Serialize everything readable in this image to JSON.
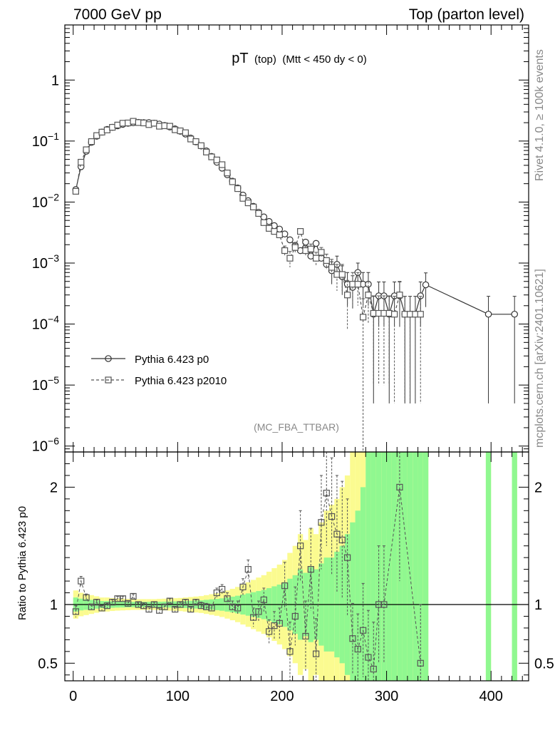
{
  "header": {
    "left": "7000 GeV pp",
    "right": "Top (parton level)"
  },
  "side_labels": {
    "rivet": "Rivet 4.1.0, ≥ 100k events",
    "mcplots": "mcplots.cern.ch [arXiv:2401.10621]"
  },
  "analysis_tag": "(MC_FBA_TTBAR)",
  "ratio_ylabel": "Ratio to Pythia 6.423 p0",
  "colors": {
    "band_inner": "#90f890",
    "band_outer": "#fbfb90",
    "p0": "#333333",
    "p2010": "#555555"
  },
  "chart_data": {
    "type": "line",
    "title": {
      "main": "pT",
      "sub1": "(top)",
      "sub2": "(Mtt < 450 dy < 0)"
    },
    "xlabel": "",
    "xlim": [
      -8,
      436
    ],
    "xticks": [
      0,
      100,
      200,
      300,
      400
    ],
    "top_panel": {
      "yscale": "log",
      "ylim": [
        8e-07,
        8
      ],
      "yticks": [
        1e-06,
        1e-05,
        0.0001,
        0.001,
        0.01,
        0.1,
        1
      ],
      "ytick_labels": [
        {
          "base": "10",
          "exp": "−6"
        },
        {
          "base": "10",
          "exp": "−5"
        },
        {
          "base": "10",
          "exp": "−4"
        },
        {
          "base": "10",
          "exp": "−3"
        },
        {
          "base": "10",
          "exp": "−2"
        },
        {
          "base": "10",
          "exp": "−1"
        },
        {
          "base": "1",
          "exp": ""
        }
      ]
    },
    "ratio_panel": {
      "ylim": [
        0.35,
        2.3
      ],
      "yticks": [
        0.5,
        1,
        2
      ],
      "ytick_labels": [
        "0.5",
        "1",
        "2"
      ]
    },
    "legend": {
      "position": "lower-left",
      "entries": [
        "Pythia 6.423 p0",
        "Pythia 6.423 p2010"
      ]
    },
    "series": [
      {
        "name": "Pythia 6.423 p0",
        "marker": "circle",
        "linestyle": "solid",
        "x": [
          2.5,
          7.5,
          12.5,
          17.5,
          22.5,
          27.5,
          32.5,
          37.5,
          42.5,
          47.5,
          52.5,
          57.5,
          62.5,
          67.5,
          72.5,
          77.5,
          82.5,
          87.5,
          92.5,
          97.5,
          102.5,
          107.5,
          112.5,
          117.5,
          122.5,
          127.5,
          132.5,
          137.5,
          142.5,
          147.5,
          152.5,
          157.5,
          162.5,
          167.5,
          172.5,
          177.5,
          182.5,
          187.5,
          192.5,
          197.5,
          202.5,
          207.5,
          212.5,
          217.5,
          222.5,
          227.5,
          232.5,
          237.5,
          242.5,
          247.5,
          252.5,
          257.5,
          262.5,
          267.5,
          272.5,
          277.5,
          282.5,
          287.5,
          292.5,
          297.5,
          302.5,
          307.5,
          312.5,
          317.5,
          322.5,
          327.5,
          332.5,
          337.5,
          397.5,
          422.5
        ],
        "y": [
          0.016,
          0.038,
          0.068,
          0.095,
          0.12,
          0.14,
          0.155,
          0.168,
          0.178,
          0.188,
          0.196,
          0.2,
          0.202,
          0.2,
          0.2,
          0.196,
          0.19,
          0.18,
          0.17,
          0.158,
          0.145,
          0.13,
          0.112,
          0.097,
          0.083,
          0.069,
          0.056,
          0.045,
          0.036,
          0.028,
          0.022,
          0.017,
          0.013,
          0.0105,
          0.0085,
          0.0068,
          0.0057,
          0.0048,
          0.0041,
          0.0036,
          0.003,
          0.0024,
          0.00195,
          0.0016,
          0.0022,
          0.0013,
          0.0021,
          0.0012,
          0.00095,
          0.00075,
          0.00095,
          0.0006,
          0.00045,
          0.0004,
          0.0007,
          0.00045,
          0.00045,
          0.000145,
          0.00029,
          0.00029,
          0.000145,
          0.00029,
          0.00029,
          0.000145,
          0.000145,
          0.000145,
          0.00029,
          0.00044,
          0.000145,
          0.000145
        ],
        "yerr": [
          0.0006,
          0.001,
          0.0015,
          0.002,
          0.002,
          0.002,
          0.002,
          0.002,
          0.002,
          0.002,
          0.002,
          0.002,
          0.002,
          0.002,
          0.002,
          0.002,
          0.002,
          0.002,
          0.002,
          0.002,
          0.002,
          0.0015,
          0.0015,
          0.0012,
          0.001,
          0.001,
          0.0008,
          0.0007,
          0.0006,
          0.0005,
          0.0004,
          0.0003,
          0.00025,
          0.00022,
          0.0002,
          0.00017,
          0.00015,
          0.00014,
          0.00013,
          0.00012,
          0.00011,
          0.0001,
          9e-05,
          8e-05,
          0.0001,
          8e-05,
          0.0001,
          8e-05,
          7e-05,
          0.0003,
          0.00035,
          0.0003,
          0.00025,
          0.00022,
          0.0003,
          0.00025,
          0.00025,
          0.00014,
          0.0002,
          0.0002,
          0.00014,
          0.0002,
          0.0002,
          0.00014,
          0.00014,
          0.00014,
          0.0002,
          0.00025,
          0.00014,
          0.00014
        ]
      },
      {
        "name": "Pythia 6.423 p2010",
        "marker": "square",
        "linestyle": "dashed",
        "x": [
          2.5,
          7.5,
          12.5,
          17.5,
          22.5,
          27.5,
          32.5,
          37.5,
          42.5,
          47.5,
          52.5,
          57.5,
          62.5,
          67.5,
          72.5,
          77.5,
          82.5,
          87.5,
          92.5,
          97.5,
          102.5,
          107.5,
          112.5,
          117.5,
          122.5,
          127.5,
          132.5,
          137.5,
          142.5,
          147.5,
          152.5,
          157.5,
          162.5,
          167.5,
          172.5,
          177.5,
          182.5,
          187.5,
          192.5,
          197.5,
          202.5,
          207.5,
          212.5,
          217.5,
          222.5,
          227.5,
          232.5,
          237.5,
          242.5,
          247.5,
          252.5,
          257.5,
          262.5,
          267.5,
          272.5,
          277.5,
          282.5,
          287.5,
          292.5,
          297.5,
          302.5,
          307.5,
          312.5,
          317.5,
          322.5,
          327.5,
          332.5
        ],
        "y": [
          0.015,
          0.045,
          0.072,
          0.098,
          0.123,
          0.14,
          0.152,
          0.168,
          0.183,
          0.196,
          0.198,
          0.211,
          0.201,
          0.198,
          0.186,
          0.196,
          0.175,
          0.178,
          0.175,
          0.153,
          0.147,
          0.137,
          0.108,
          0.098,
          0.084,
          0.066,
          0.055,
          0.049,
          0.041,
          0.03,
          0.0215,
          0.0166,
          0.0115,
          0.0097,
          0.0083,
          0.0065,
          0.0046,
          0.0037,
          0.0033,
          0.0029,
          0.0016,
          0.0012,
          0.0018,
          0.0033,
          0.0016,
          0.0017,
          0.0012,
          0.0015,
          0.0011,
          0.00085,
          0.00065,
          0.00065,
          0.0003,
          0.00045,
          0.00045,
          0.00013,
          0.0003,
          0.00015,
          0.00015,
          0.00015,
          0.00015,
          0.000145,
          0.0003,
          0.000145,
          0.000145,
          0.000145,
          0.000145
        ],
        "yerr": [
          0.0006,
          0.001,
          0.0015,
          0.002,
          0.002,
          0.002,
          0.002,
          0.002,
          0.002,
          0.002,
          0.002,
          0.002,
          0.002,
          0.002,
          0.002,
          0.002,
          0.002,
          0.002,
          0.002,
          0.002,
          0.002,
          0.0015,
          0.0015,
          0.0012,
          0.001,
          0.001,
          0.0008,
          0.0007,
          0.0006,
          0.0005,
          0.0004,
          0.0003,
          0.00025,
          0.00022,
          0.0002,
          0.00017,
          0.00015,
          0.00014,
          0.00013,
          0.00012,
          0.0003,
          0.00035,
          0.0003,
          0.0003,
          0.0003,
          0.00035,
          0.0003,
          0.0003,
          0.0003,
          0.0003,
          0.0003,
          0.0003,
          0.00022,
          0.00025,
          0.00025,
          0.00013,
          0.0002,
          0.00014,
          0.00014,
          0.00014,
          0.00014,
          0.00014,
          0.0002,
          0.00014,
          0.00014,
          0.00014,
          0.00014
        ]
      }
    ],
    "ratio": {
      "reference": "Pythia 6.423 p0",
      "x": [
        2.5,
        7.5,
        12.5,
        17.5,
        22.5,
        27.5,
        32.5,
        37.5,
        42.5,
        47.5,
        52.5,
        57.5,
        62.5,
        67.5,
        72.5,
        77.5,
        82.5,
        87.5,
        92.5,
        97.5,
        102.5,
        107.5,
        112.5,
        117.5,
        122.5,
        127.5,
        132.5,
        137.5,
        142.5,
        147.5,
        152.5,
        157.5,
        162.5,
        167.5,
        172.5,
        177.5,
        182.5,
        187.5,
        192.5,
        197.5,
        202.5,
        207.5,
        212.5,
        217.5,
        222.5,
        227.5,
        232.5,
        237.5,
        242.5,
        247.5,
        252.5,
        257.5,
        262.5,
        267.5,
        272.5,
        277.5,
        282.5,
        287.5,
        292.5,
        297.5,
        312.5,
        332.5
      ],
      "y": [
        0.94,
        1.2,
        1.06,
        0.98,
        1.02,
        0.97,
        0.99,
        1.02,
        1.05,
        1.05,
        1.01,
        1.07,
        1.0,
        0.99,
        0.96,
        1.0,
        0.95,
        0.98,
        1.03,
        0.96,
        1.0,
        1.02,
        0.96,
        1.02,
        0.99,
        0.98,
        0.97,
        1.1,
        1.13,
        1.05,
        0.98,
        0.97,
        1.15,
        1.3,
        0.89,
        0.94,
        1.04,
        0.77,
        0.82,
        0.84,
        1.16,
        0.6,
        0.9,
        1.5,
        0.73,
        1.3,
        0.58,
        1.7,
        1.95,
        1.75,
        1.6,
        1.55,
        1.4,
        0.71,
        0.62,
        0.78,
        0.55,
        0.45,
        1.0,
        1.0,
        2.0,
        0.5
      ],
      "yerr": [
        0.05,
        0.04,
        0.03,
        0.02,
        0.02,
        0.02,
        0.02,
        0.02,
        0.02,
        0.02,
        0.02,
        0.02,
        0.02,
        0.02,
        0.02,
        0.02,
        0.02,
        0.02,
        0.02,
        0.02,
        0.02,
        0.02,
        0.02,
        0.02,
        0.03,
        0.03,
        0.03,
        0.04,
        0.04,
        0.05,
        0.05,
        0.06,
        0.07,
        0.08,
        0.08,
        0.09,
        0.1,
        0.1,
        0.12,
        0.13,
        0.2,
        0.25,
        0.25,
        0.3,
        0.3,
        0.35,
        0.3,
        0.4,
        0.45,
        0.5,
        0.5,
        0.5,
        0.5,
        0.3,
        0.3,
        0.4,
        0.4,
        0.4,
        0.5,
        0.5,
        0.8,
        0.5
      ]
    },
    "ratio_band": {
      "x_edges": [
        0,
        5,
        10,
        15,
        20,
        25,
        30,
        35,
        40,
        45,
        50,
        55,
        60,
        65,
        70,
        75,
        80,
        85,
        90,
        95,
        100,
        105,
        110,
        115,
        120,
        125,
        130,
        135,
        140,
        145,
        150,
        155,
        160,
        165,
        170,
        175,
        180,
        185,
        190,
        195,
        200,
        205,
        210,
        215,
        220,
        225,
        230,
        235,
        240,
        245,
        250,
        255,
        260,
        265,
        270,
        275,
        280,
        285,
        290,
        295,
        300,
        305,
        310,
        315,
        320,
        325,
        330,
        335,
        340,
        395,
        400,
        420,
        425
      ],
      "inner": [
        0.06,
        0.05,
        0.045,
        0.04,
        0.035,
        0.03,
        0.03,
        0.028,
        0.026,
        0.025,
        0.024,
        0.023,
        0.023,
        0.023,
        0.023,
        0.023,
        0.024,
        0.025,
        0.026,
        0.027,
        0.028,
        0.03,
        0.032,
        0.034,
        0.036,
        0.04,
        0.044,
        0.048,
        0.053,
        0.06,
        0.067,
        0.075,
        0.085,
        0.095,
        0.105,
        0.115,
        0.125,
        0.14,
        0.155,
        0.17,
        0.19,
        0.22,
        0.25,
        0.3,
        0.27,
        0.32,
        0.3,
        0.35,
        0.4,
        0.4,
        0.45,
        0.5,
        0.6,
        0.7,
        0.8,
        1.0,
        1.4,
        1.4,
        1.4,
        1.4,
        1.4,
        1.4,
        1.4,
        1.4,
        1.4,
        1.4,
        1.4,
        1.4,
        null,
        1.4,
        null,
        1.4
      ],
      "outer": [
        0.12,
        0.1,
        0.09,
        0.08,
        0.07,
        0.06,
        0.06,
        0.055,
        0.052,
        0.05,
        0.048,
        0.046,
        0.046,
        0.046,
        0.046,
        0.046,
        0.048,
        0.05,
        0.052,
        0.054,
        0.056,
        0.06,
        0.064,
        0.068,
        0.072,
        0.08,
        0.088,
        0.096,
        0.106,
        0.12,
        0.134,
        0.15,
        0.17,
        0.19,
        0.21,
        0.23,
        0.25,
        0.28,
        0.31,
        0.34,
        0.38,
        0.44,
        0.5,
        0.6,
        0.55,
        0.65,
        0.6,
        0.7,
        0.8,
        0.85,
        0.9,
        1.0,
        1.1,
        1.3,
        1.4,
        1.6,
        2.0,
        2.0,
        2.0,
        2.0,
        2.0,
        2.0,
        2.0,
        2.0,
        2.0,
        2.0,
        2.0,
        2.0,
        null,
        2.0,
        null,
        2.0
      ]
    }
  }
}
